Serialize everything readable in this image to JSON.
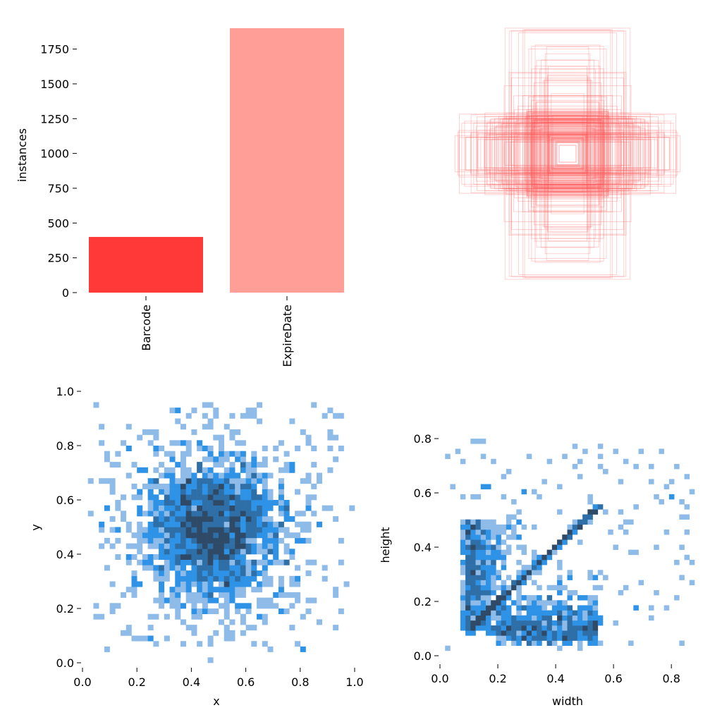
{
  "chart_data": [
    {
      "type": "bar",
      "ylabel": "instances",
      "categories": [
        "Barcode",
        "ExpireDate"
      ],
      "values": [
        400,
        1900
      ],
      "colors": [
        "#ff3838",
        "#ff9d97"
      ],
      "ylim": [
        0,
        1900
      ],
      "yticks": [
        0,
        250,
        500,
        750,
        1000,
        1250,
        1500,
        1750
      ],
      "ytick_labels": [
        "0",
        "250",
        "500",
        "750",
        "1000",
        "1250",
        "1500",
        "1750"
      ]
    },
    {
      "type": "box-overlay",
      "description_color": "#ff6f6f",
      "note": "overlay of bounding boxes centered at (0.5,0.5)"
    },
    {
      "type": "heatmap",
      "xlabel": "x",
      "ylabel": "y",
      "xlim": [
        0,
        1
      ],
      "ylim": [
        0,
        1
      ],
      "xticks": [
        0.0,
        0.2,
        0.4,
        0.6,
        0.8,
        1.0
      ],
      "xtick_labels": [
        "0.0",
        "0.2",
        "0.4",
        "0.6",
        "0.8",
        "1.0"
      ],
      "yticks": [
        0.0,
        0.2,
        0.4,
        0.6,
        0.8,
        1.0
      ],
      "ytick_labels": [
        "0.0",
        "0.2",
        "0.4",
        "0.6",
        "0.8",
        "1.0"
      ],
      "bins": 50,
      "center": [
        0.48,
        0.5
      ],
      "spread": 0.13,
      "seed": 7
    },
    {
      "type": "heatmap",
      "xlabel": "width",
      "ylabel": "height",
      "xlim": [
        0,
        0.88
      ],
      "ylim": [
        0,
        0.93
      ],
      "xticks": [
        0.0,
        0.2,
        0.4,
        0.6,
        0.8
      ],
      "xtick_labels": [
        "0.0",
        "0.2",
        "0.4",
        "0.6",
        "0.8"
      ],
      "yticks": [
        0.0,
        0.2,
        0.4,
        0.6,
        0.8
      ],
      "ytick_labels": [
        "0.0",
        "0.2",
        "0.4",
        "0.6",
        "0.8"
      ],
      "bins": 50,
      "seed": 13
    }
  ]
}
